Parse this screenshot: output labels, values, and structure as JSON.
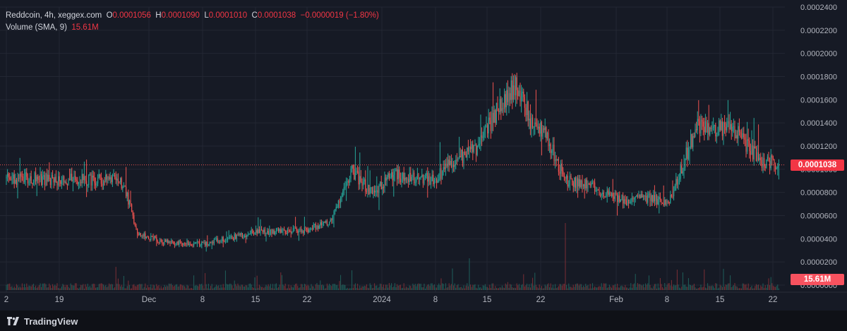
{
  "legend": {
    "symbol": "Reddcoin, 4h, xeggex.com",
    "o_label": "O",
    "o_value": "0.0001056",
    "h_label": "H",
    "h_value": "0.0001090",
    "l_label": "L",
    "l_value": "0.0001010",
    "c_label": "C",
    "c_value": "0.0001038",
    "change": "−0.0000019 (−1.80%)",
    "volume_label": "Volume (SMA, 9)",
    "volume_value": "15.61M"
  },
  "price_axis": {
    "ticks": [
      "0.0002400",
      "0.0002200",
      "0.0002000",
      "0.0001800",
      "0.0001600",
      "0.0001400",
      "0.0001200",
      "0.0001000",
      "0.0000800",
      "0.0000600",
      "0.0000400",
      "0.0000200",
      "0.0000000"
    ],
    "last_price": "0.0001038",
    "volume_badge": "15.61M"
  },
  "time_axis": {
    "ticks": [
      "2",
      "19",
      "Dec",
      "8",
      "15",
      "22",
      "2024",
      "8",
      "15",
      "22",
      "Feb",
      "8",
      "15",
      "22"
    ]
  },
  "footer": {
    "brand": "TradingView",
    "logo_icon": "tradingview-logo-icon"
  },
  "colors": {
    "up": "#26a69a",
    "down": "#ef5350",
    "background": "#161a25",
    "grid": "#232733",
    "text": "#b2b5be"
  },
  "chart_data": {
    "type": "candlestick",
    "title": "Reddcoin, 4h, xeggex.com",
    "interval": "4h",
    "ylim": [
      0,
      0.00024
    ],
    "grid": true,
    "last": {
      "open": 0.0001056,
      "high": 0.000109,
      "low": 0.000101,
      "close": 0.0001038,
      "change": -1.9e-06,
      "change_pct": -1.8
    },
    "close_path": {
      "x": [
        "Nov 2",
        "Nov 17",
        "Nov 19",
        "Nov 21",
        "Nov 25",
        "Dec 1",
        "Dec 8",
        "Dec 15",
        "Dec 19",
        "Dec 22",
        "Dec 25",
        "Dec 28",
        "Dec 31",
        "Jan 3",
        "Jan 6",
        "Jan 9",
        "Jan 12",
        "Jan 15",
        "Jan 17",
        "Jan 19",
        "Jan 22",
        "Jan 24",
        "Jan 28",
        "Jan 31",
        "Feb 3",
        "Feb 6",
        "Feb 8",
        "Feb 10",
        "Feb 14",
        "Feb 16",
        "Feb 19",
        "Feb 22"
      ],
      "close": [
        9.2e-05,
        9.1e-05,
        8.8e-05,
        4.5e-05,
        3.7e-05,
        3.6e-05,
        4.6e-05,
        4.7e-05,
        5.5e-05,
        9.8e-05,
        8e-05,
        9.5e-05,
        9.3e-05,
        9.2e-05,
        0.000108,
        0.000118,
        0.00015,
        0.000175,
        0.00014,
        0.00013,
        9e-05,
        8.8e-05,
        8e-05,
        7.2e-05,
        7.6e-05,
        7.1e-05,
        0.000105,
        0.000138,
        0.000135,
        0.00013,
        0.000108,
        0.000104
      ]
    },
    "volume": {
      "x": [
        "Nov 19",
        "Dec 8",
        "Dec 22",
        "Jan 8",
        "Jan 22",
        "Feb 8"
      ],
      "peaks": [
        0.2,
        0.18,
        0.28,
        0.45,
        0.95,
        0.25
      ]
    }
  }
}
